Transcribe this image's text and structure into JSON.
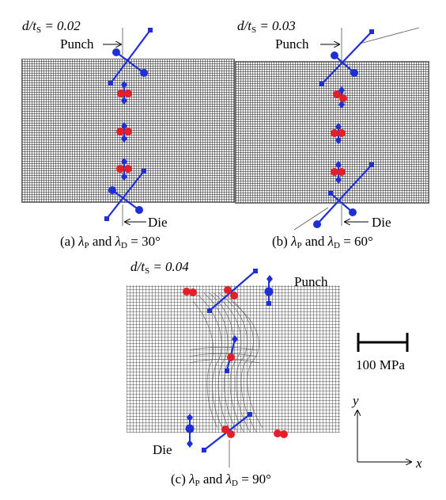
{
  "panels": [
    {
      "ratio_label": "d/t",
      "ratio_sub": "S",
      "ratio_value": " = 0.02",
      "punch_label": "Punch",
      "die_label": "Die",
      "caption_prefix": "(a) ",
      "lambda_p_sym": "λ",
      "lambda_p_sub": "P",
      "and_text": " and ",
      "lambda_d_sym": "λ",
      "lambda_d_sub": "D",
      "caption_suffix": " = 30°"
    },
    {
      "ratio_label": "d/t",
      "ratio_sub": "S",
      "ratio_value": " = 0.03",
      "punch_label": "Punch",
      "die_label": "Die",
      "caption_prefix": "(b) ",
      "lambda_p_sym": "λ",
      "lambda_p_sub": "P",
      "and_text": " and ",
      "lambda_d_sym": "λ",
      "lambda_d_sub": "D",
      "caption_suffix": " = 60°"
    },
    {
      "ratio_label": "d/t",
      "ratio_sub": "S",
      "ratio_value": " = 0.04",
      "punch_label": "Punch",
      "die_label": "Die",
      "caption_prefix": "(c) ",
      "lambda_p_sym": "λ",
      "lambda_p_sub": "P",
      "and_text": " and ",
      "lambda_d_sym": "λ",
      "lambda_d_sub": "D",
      "caption_suffix": " = 90°"
    }
  ],
  "scale_bar": {
    "label": "100 MPa"
  },
  "axes": {
    "x_label": "x",
    "y_label": "y"
  },
  "colors": {
    "stress_blue": "#1f2fd6",
    "stress_red": "#e3202a",
    "mesh_line": "#555555"
  }
}
